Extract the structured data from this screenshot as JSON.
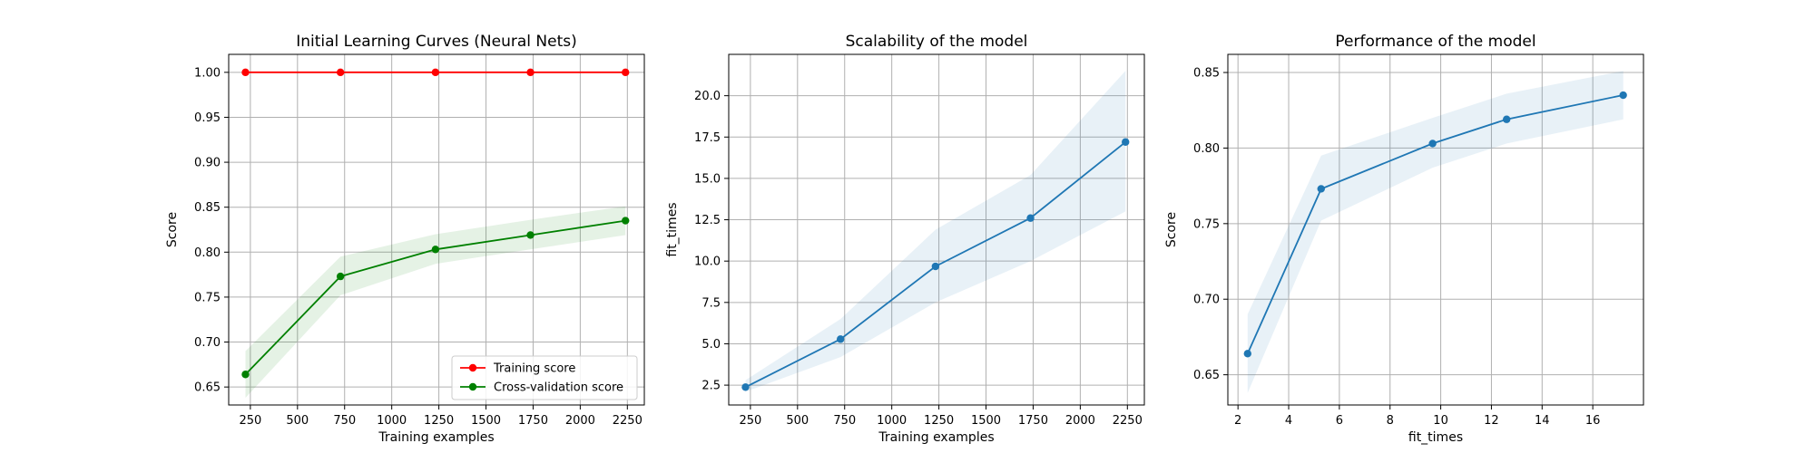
{
  "chart_data": [
    {
      "type": "line",
      "title": "Initial Learning Curves (Neural Nets)",
      "xlabel": "Training examples",
      "ylabel": "Score",
      "xlim": [
        135,
        2340
      ],
      "ylim": [
        0.63,
        1.02
      ],
      "xticks": [
        250,
        500,
        750,
        1000,
        1250,
        1500,
        1750,
        2000,
        2250
      ],
      "yticks": [
        0.65,
        0.7,
        0.75,
        0.8,
        0.85,
        0.9,
        0.95,
        1.0
      ],
      "grid": true,
      "legend_position": "lower-right",
      "series": [
        {
          "name": "Training score",
          "color": "#ff0000",
          "x": [
            224,
            728,
            1232,
            1736,
            2240
          ],
          "y": [
            1.0,
            1.0,
            1.0,
            1.0,
            1.0
          ],
          "band_low": [
            1.0,
            1.0,
            1.0,
            1.0,
            1.0
          ],
          "band_high": [
            1.0,
            1.0,
            1.0,
            1.0,
            1.0
          ]
        },
        {
          "name": "Cross-validation score",
          "color": "#008000",
          "x": [
            224,
            728,
            1232,
            1736,
            2240
          ],
          "y": [
            0.664,
            0.773,
            0.803,
            0.819,
            0.835
          ],
          "band_low": [
            0.638,
            0.752,
            0.787,
            0.803,
            0.819
          ],
          "band_high": [
            0.69,
            0.795,
            0.82,
            0.836,
            0.851
          ]
        }
      ]
    },
    {
      "type": "line",
      "title": "Scalability of the model",
      "xlabel": "Training examples",
      "ylabel": "fit_times",
      "xlim": [
        135,
        2340
      ],
      "ylim": [
        1.3,
        22.5
      ],
      "xticks": [
        250,
        500,
        750,
        1000,
        1250,
        1500,
        1750,
        2000,
        2250
      ],
      "yticks": [
        2.5,
        5.0,
        7.5,
        10.0,
        12.5,
        15.0,
        17.5,
        20.0
      ],
      "grid": true,
      "series": [
        {
          "color": "#1f77b4",
          "x": [
            224,
            728,
            1232,
            1736,
            2240
          ],
          "y": [
            2.38,
            5.28,
            9.68,
            12.6,
            17.2
          ],
          "band_low": [
            2.1,
            4.2,
            7.5,
            10.0,
            13.0
          ],
          "band_high": [
            2.8,
            6.5,
            11.9,
            15.2,
            21.5
          ]
        }
      ]
    },
    {
      "type": "line",
      "title": "Performance of the model",
      "xlabel": "fit_times",
      "ylabel": "Score",
      "xlim": [
        1.6,
        18.0
      ],
      "ylim": [
        0.63,
        0.862
      ],
      "xticks": [
        2,
        4,
        6,
        8,
        10,
        12,
        14,
        16
      ],
      "yticks": [
        0.65,
        0.7,
        0.75,
        0.8,
        0.85
      ],
      "grid": true,
      "series": [
        {
          "color": "#1f77b4",
          "x": [
            2.38,
            5.28,
            9.68,
            12.6,
            17.2
          ],
          "y": [
            0.664,
            0.773,
            0.803,
            0.819,
            0.835
          ],
          "band_low": [
            0.638,
            0.752,
            0.787,
            0.803,
            0.819
          ],
          "band_high": [
            0.69,
            0.795,
            0.82,
            0.836,
            0.851
          ]
        }
      ]
    }
  ]
}
